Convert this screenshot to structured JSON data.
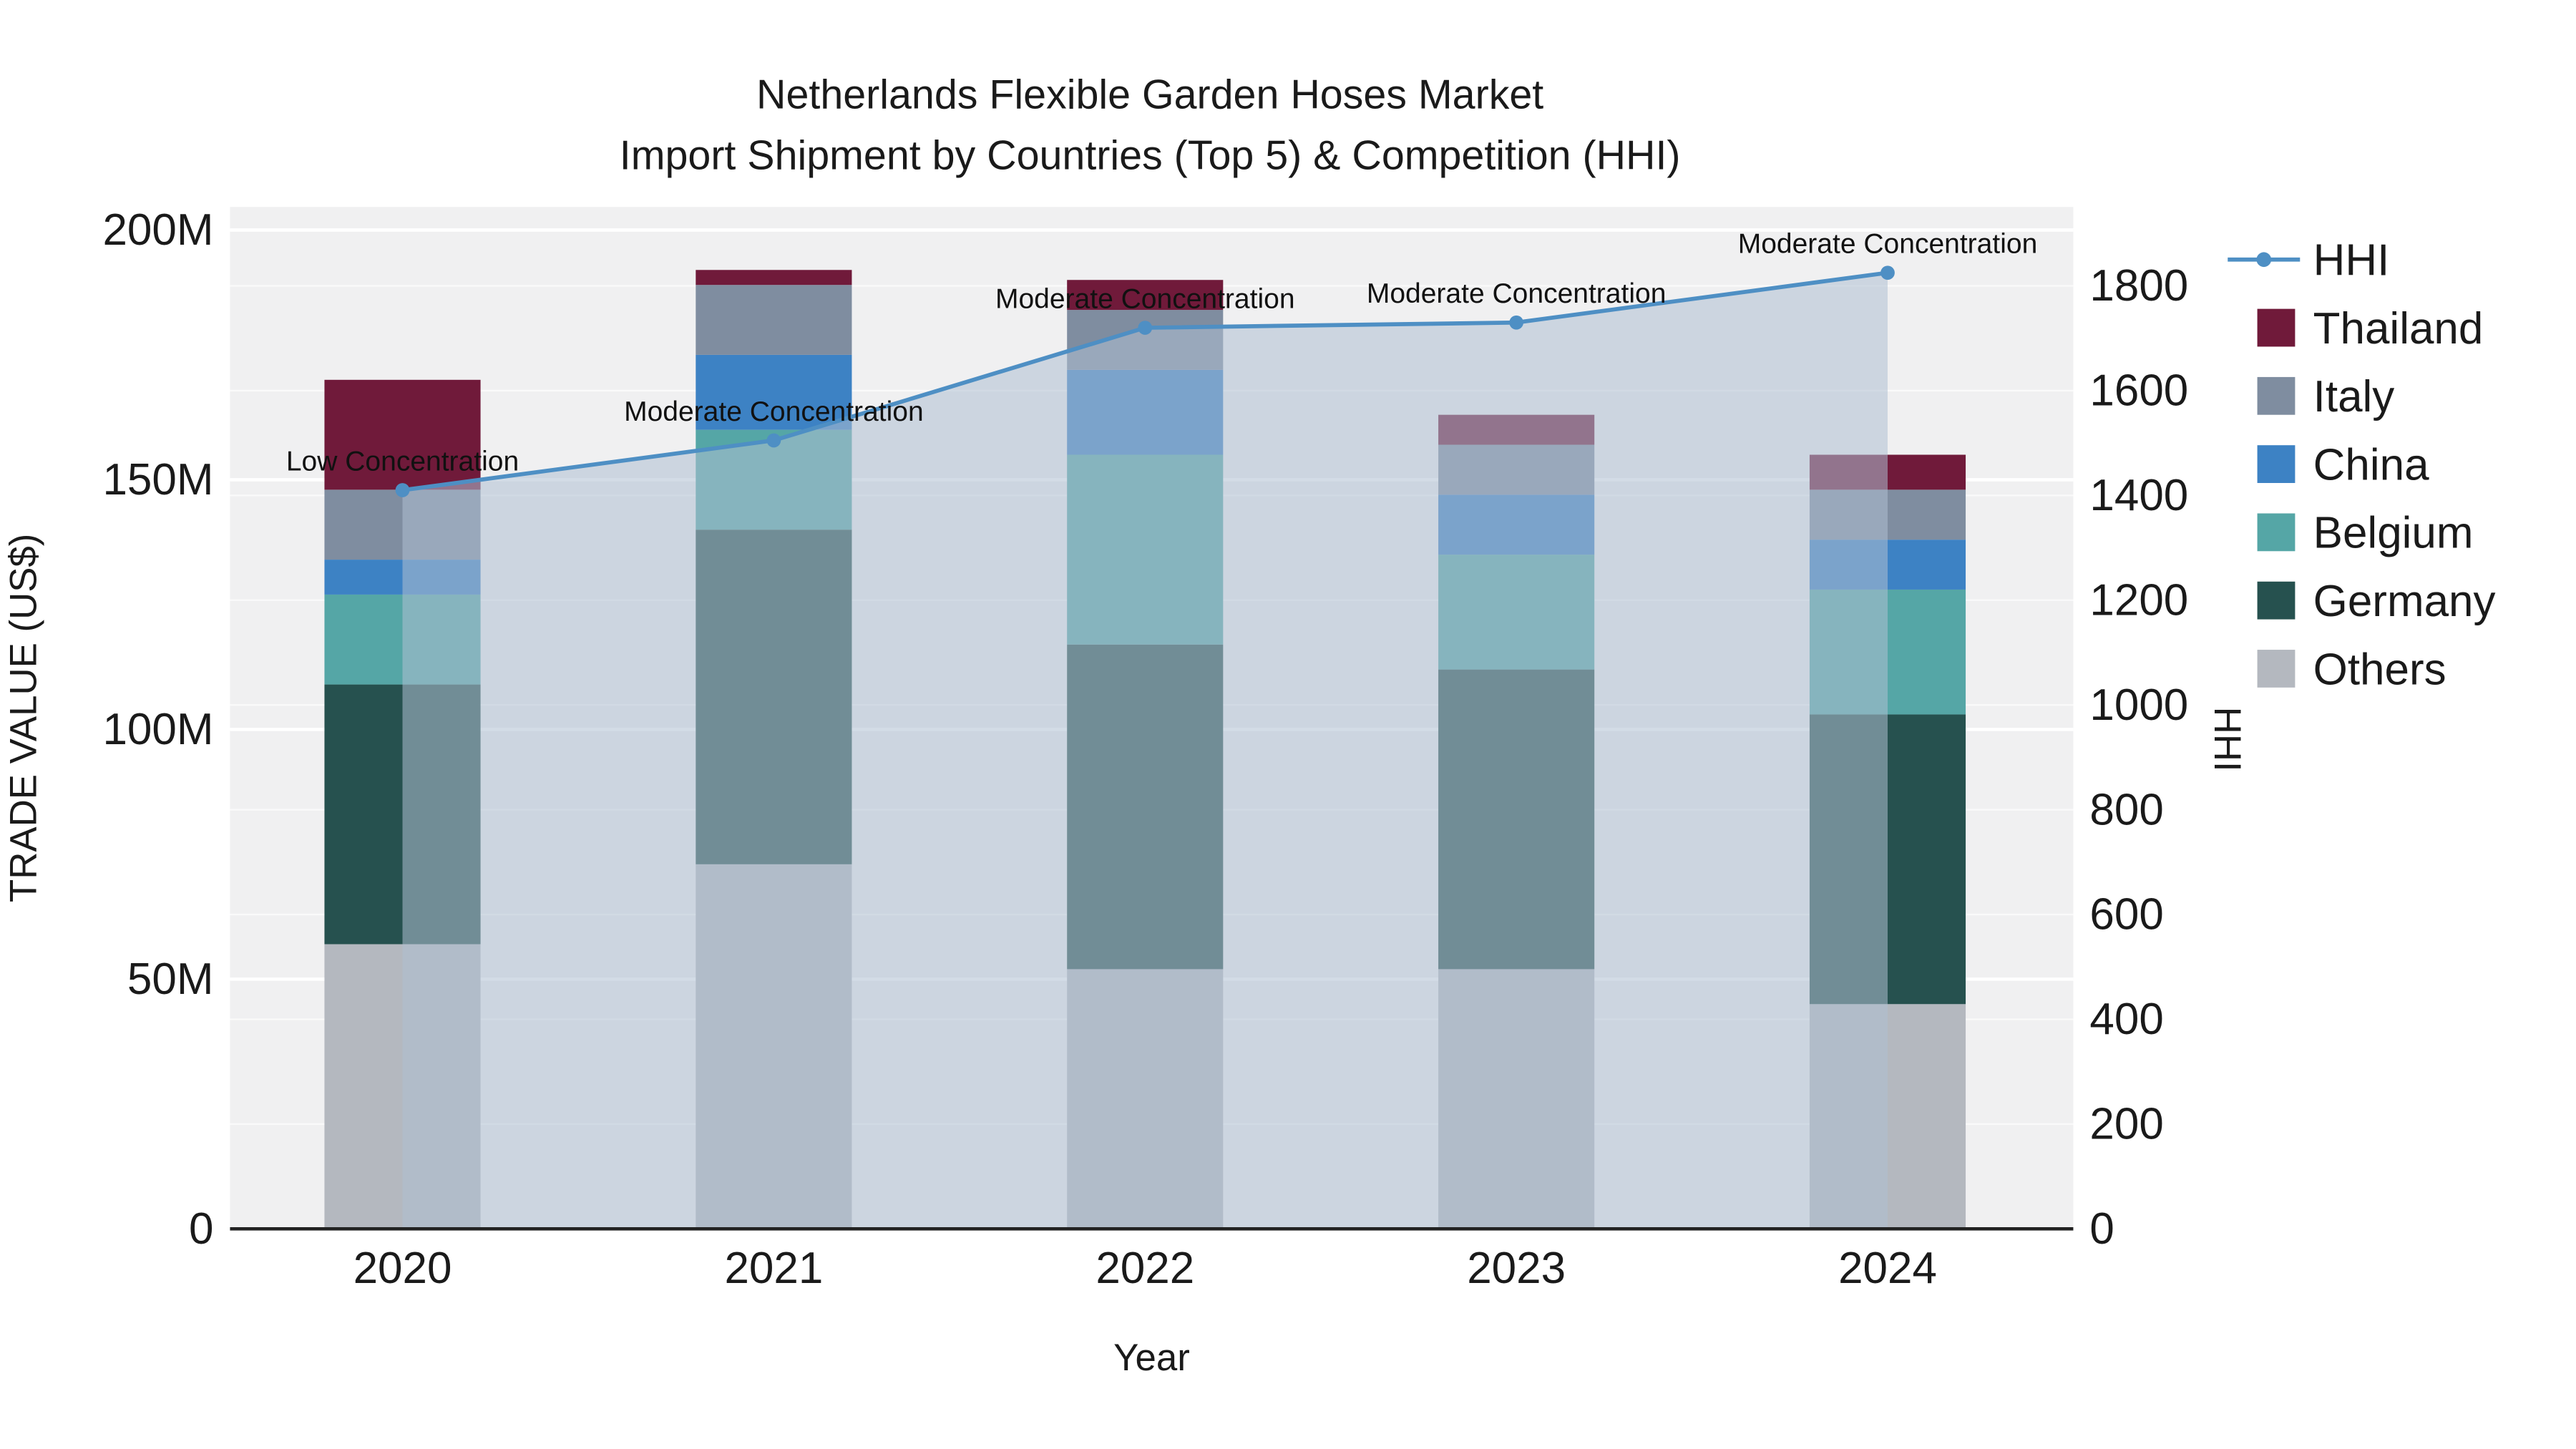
{
  "title": {
    "line1": "Netherlands Flexible Garden Hoses Market",
    "line2": "Import Shipment by Countries (Top 5) & Competition (HHI)"
  },
  "chart_data": {
    "type": "bar",
    "subtype": "stacked-bar-with-line-area",
    "categories": [
      "2020",
      "2021",
      "2022",
      "2023",
      "2024"
    ],
    "bar_unit": "M US$",
    "bar_series": [
      {
        "name": "Others",
        "color": "#b4b8bf",
        "values": [
          57,
          73,
          52,
          52,
          45
        ]
      },
      {
        "name": "Germany",
        "color": "#26514f",
        "values": [
          52,
          67,
          65,
          60,
          58
        ]
      },
      {
        "name": "Belgium",
        "color": "#55a6a6",
        "values": [
          18,
          20,
          38,
          23,
          25
        ]
      },
      {
        "name": "China",
        "color": "#3d82c4",
        "values": [
          7,
          15,
          17,
          12,
          10
        ]
      },
      {
        "name": "Italy",
        "color": "#7f8da0",
        "values": [
          14,
          14,
          12,
          10,
          10
        ]
      },
      {
        "name": "Thailand",
        "color": "#701a3a",
        "values": [
          22,
          3,
          6,
          6,
          7
        ]
      }
    ],
    "line_series": {
      "name": "HHI",
      "color": "#4e8fc4",
      "area_fill": "rgba(175,192,210,0.55)",
      "values": [
        1410,
        1505,
        1720,
        1730,
        1825
      ]
    },
    "annotations": [
      "Low Concentration",
      "Moderate Concentration",
      "Moderate Concentration",
      "Moderate Concentration",
      "Moderate Concentration"
    ],
    "axes": {
      "x": {
        "label": "Year"
      },
      "y_left": {
        "label": "TRADE VALUE (US$)",
        "ticks": [
          {
            "v": 0,
            "label": "0"
          },
          {
            "v": 50,
            "label": "50M"
          },
          {
            "v": 100,
            "label": "100M"
          },
          {
            "v": 150,
            "label": "150M"
          },
          {
            "v": 200,
            "label": "200M"
          }
        ]
      },
      "y_right": {
        "label": "HHI",
        "ticks": [
          {
            "v": 0,
            "label": "0"
          },
          {
            "v": 200,
            "label": "200"
          },
          {
            "v": 400,
            "label": "400"
          },
          {
            "v": 600,
            "label": "600"
          },
          {
            "v": 800,
            "label": "800"
          },
          {
            "v": 1000,
            "label": "1000"
          },
          {
            "v": 1200,
            "label": "1200"
          },
          {
            "v": 1400,
            "label": "1400"
          },
          {
            "v": 1600,
            "label": "1600"
          },
          {
            "v": 1800,
            "label": "1800"
          }
        ]
      }
    },
    "legend": [
      {
        "name": "HHI",
        "swatch": "line",
        "color": "#4e8fc4"
      },
      {
        "name": "Thailand",
        "swatch": "square",
        "color": "#701a3a"
      },
      {
        "name": "Italy",
        "swatch": "square",
        "color": "#7f8da0"
      },
      {
        "name": "China",
        "swatch": "square",
        "color": "#3d82c4"
      },
      {
        "name": "Belgium",
        "swatch": "square",
        "color": "#55a6a6"
      },
      {
        "name": "Germany",
        "swatch": "square",
        "color": "#26514f"
      },
      {
        "name": "Others",
        "swatch": "square",
        "color": "#b4b8bf"
      }
    ],
    "style": {
      "plot_bg": "#f0f0f1",
      "grid_color": "#ffffff",
      "axis_line_color": "#222222"
    }
  }
}
